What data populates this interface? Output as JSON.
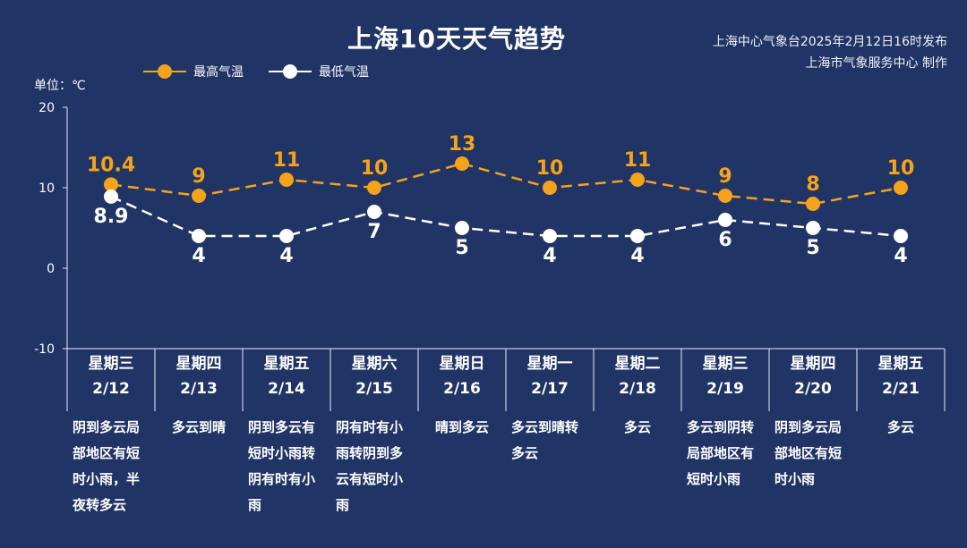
{
  "title": "上海10天天气趋势",
  "publisher": {
    "line1": "上海中心气象台2025年2月12日16时发布",
    "line2": "上海市气象服务中心 制作"
  },
  "legend": {
    "high": "最高气温",
    "low": "最低气温"
  },
  "unit_label": "单位：℃",
  "colors": {
    "background": "#213466",
    "high": "#F5A31A",
    "low": "#FFFFFF",
    "axis": "#E8ECF5"
  },
  "chart_data": {
    "type": "line",
    "yticks": [
      20,
      10,
      0,
      -10
    ],
    "ylim": [
      -10,
      20
    ],
    "categories": [
      {
        "weekday": "星期三",
        "date": "2/12",
        "weather": "阴到多云局部地区有短时小雨，半夜转多云"
      },
      {
        "weekday": "星期四",
        "date": "2/13",
        "weather": "多云到晴"
      },
      {
        "weekday": "星期五",
        "date": "2/14",
        "weather": "阴到多云有短时小雨转阴有时有小雨"
      },
      {
        "weekday": "星期六",
        "date": "2/15",
        "weather": "阴有时有小雨转阴到多云有短时小雨"
      },
      {
        "weekday": "星期日",
        "date": "2/16",
        "weather": "晴到多云"
      },
      {
        "weekday": "星期一",
        "date": "2/17",
        "weather": "多云到晴转多云"
      },
      {
        "weekday": "星期二",
        "date": "2/18",
        "weather": "多云"
      },
      {
        "weekday": "星期三",
        "date": "2/19",
        "weather": "多云到阴转局部地区有短时小雨"
      },
      {
        "weekday": "星期四",
        "date": "2/20",
        "weather": "阴到多云局部地区有短时小雨"
      },
      {
        "weekday": "星期五",
        "date": "2/21",
        "weather": "多云"
      }
    ],
    "series": [
      {
        "name": "最高气温",
        "values": [
          10.4,
          9,
          11,
          10,
          13,
          10,
          11,
          9,
          8,
          10
        ]
      },
      {
        "name": "最低气温",
        "values": [
          8.9,
          4,
          4,
          7,
          5,
          4,
          4,
          6,
          5,
          4
        ]
      }
    ]
  }
}
